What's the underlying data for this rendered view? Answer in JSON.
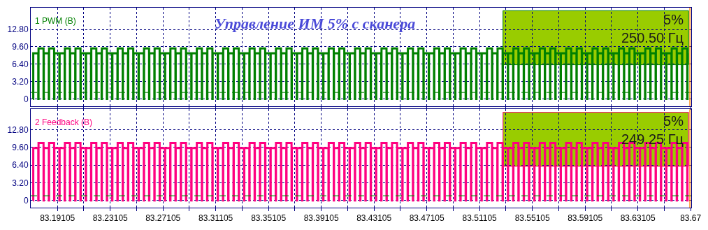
{
  "chart_data": [
    {
      "type": "step",
      "title": "Управление ИМ 5% с сканера",
      "x": [
        83.1725,
        83.1727,
        83.1765,
        83.1767,
        83.1805,
        83.1807,
        83.1845,
        83.1847,
        83.1885,
        83.1887,
        83.1925,
        83.1927,
        83.1965,
        83.1967,
        83.2005,
        83.2007,
        83.2045,
        83.2047,
        83.2085,
        83.2087,
        83.2125,
        83.2127,
        83.2165,
        83.2167,
        83.2205,
        83.2207,
        83.2245,
        83.2247,
        83.2285,
        83.2287,
        83.2325,
        83.2327,
        83.2365,
        83.2367,
        83.2405,
        83.2407,
        83.2445,
        83.2447,
        83.2485,
        83.2487,
        83.2525,
        83.2527,
        83.2565,
        83.2567,
        83.2605,
        83.2607,
        83.2645,
        83.2647,
        83.2685,
        83.2687,
        83.2725,
        83.2727,
        83.2765,
        83.2767,
        83.2805,
        83.2807,
        83.2845,
        83.2847,
        83.2885,
        83.2887,
        83.2925,
        83.2927,
        83.2965,
        83.2967,
        83.3005,
        83.3007,
        83.3045,
        83.3047,
        83.3085,
        83.3087,
        83.3125,
        83.3127,
        83.3165,
        83.3167,
        83.3205,
        83.3207,
        83.3245,
        83.3247,
        83.3285,
        83.3287,
        83.3325,
        83.3327,
        83.3365,
        83.3367,
        83.3405,
        83.3407,
        83.3445,
        83.3447,
        83.3485,
        83.3487,
        83.3525,
        83.3527,
        83.3565,
        83.3567,
        83.3605,
        83.3607,
        83.3645,
        83.3647,
        83.3685,
        83.3687,
        83.3725,
        83.3727,
        83.3765,
        83.3767,
        83.3805,
        83.3807,
        83.3845,
        83.3847,
        83.3885,
        83.3887,
        83.3925,
        83.3927,
        83.3965,
        83.3967,
        83.4005,
        83.4007,
        83.4045,
        83.4047,
        83.4085,
        83.4087,
        83.4125,
        83.4127,
        83.4165,
        83.4167,
        83.4205,
        83.4207,
        83.4245,
        83.4247,
        83.4285,
        83.4287,
        83.4325,
        83.4327,
        83.4365,
        83.4367,
        83.4405,
        83.4407,
        83.4445,
        83.4447,
        83.4485,
        83.4487,
        83.4525,
        83.4527,
        83.4565,
        83.4567,
        83.4605,
        83.4607,
        83.4645,
        83.4647,
        83.4685,
        83.4687,
        83.4725,
        83.4727,
        83.4765,
        83.4767,
        83.4805,
        83.4807,
        83.4845,
        83.4847,
        83.4885,
        83.4887,
        83.4925,
        83.4927,
        83.4965,
        83.4967,
        83.5005,
        83.5007,
        83.5045,
        83.5047,
        83.5085,
        83.5087,
        83.5125,
        83.5127,
        83.5165,
        83.5167,
        83.5205,
        83.5207,
        83.5245,
        83.5247,
        83.5285,
        83.5287,
        83.5325,
        83.5327,
        83.5365,
        83.5367,
        83.5405,
        83.5407,
        83.5445,
        83.5447,
        83.5485,
        83.5487,
        83.5525,
        83.5527,
        83.5565,
        83.5567,
        83.5605,
        83.5607,
        83.5645,
        83.5647,
        83.5685,
        83.5687,
        83.5725,
        83.5727,
        83.5765,
        83.5767,
        83.5805,
        83.5807,
        83.5845,
        83.5847,
        83.5885,
        83.5887,
        83.5925,
        83.5927,
        83.5965,
        83.5967,
        83.6005,
        83.6007,
        83.6045,
        83.6047,
        83.6085,
        83.6087,
        83.6125,
        83.6127,
        83.6165,
        83.6167,
        83.6205,
        83.6207,
        83.6245,
        83.6247,
        83.6285,
        83.6287,
        83.6325,
        83.6327,
        83.6365,
        83.6367,
        83.6405,
        83.6407,
        83.6445,
        83.6447,
        83.6485,
        83.6487,
        83.6525,
        83.6527,
        83.6565,
        83.6567,
        83.6605,
        83.6607,
        83.6645,
        83.6647,
        83.6685,
        83.6687
      ],
      "series": [
        {
          "name": "1 PWM (B)",
          "color": "#008000",
          "values": [
            0,
            8.4,
            0,
            9.3,
            0,
            8.4,
            0,
            9.3,
            0,
            8.4,
            0,
            8.4,
            0,
            9.3,
            0,
            8.4,
            0,
            9.3,
            0,
            8.4,
            0,
            8.4,
            0,
            9.3,
            0,
            8.4,
            0,
            9.3,
            0,
            8.4,
            0,
            8.4,
            0,
            9.3,
            0,
            8.4,
            0,
            9.3,
            0,
            8.4,
            0,
            8.4,
            0,
            9.3,
            0,
            8.4,
            0,
            9.3,
            0,
            8.4,
            0,
            8.4,
            0,
            9.3,
            0,
            8.4,
            0,
            9.3,
            0,
            8.4,
            0,
            8.4,
            0,
            9.3,
            0,
            8.4,
            0,
            9.3,
            0,
            8.4,
            0,
            8.4,
            0,
            9.3,
            0,
            8.4,
            0,
            9.3,
            0,
            8.4,
            0,
            8.4,
            0,
            9.3,
            0,
            8.4,
            0,
            9.3,
            0,
            8.4,
            0,
            8.4,
            0,
            9.3,
            0,
            8.4,
            0,
            9.3,
            0,
            8.4,
            0,
            8.4,
            0,
            9.3,
            0,
            8.4,
            0,
            9.3,
            0,
            8.4,
            0,
            8.4,
            0,
            9.3,
            0,
            8.4,
            0,
            9.3,
            0,
            8.4,
            0,
            8.4,
            0,
            9.3,
            0,
            8.4,
            0,
            9.3,
            0,
            8.4,
            0,
            8.4,
            0,
            9.3,
            0,
            8.4,
            0,
            9.3,
            0,
            8.4,
            0,
            8.4,
            0,
            9.3,
            0,
            8.4,
            0,
            9.3,
            0,
            8.4,
            0,
            8.4,
            0,
            9.3,
            0,
            8.4,
            0,
            9.3,
            0,
            8.4,
            0,
            8.4,
            0,
            9.3,
            0,
            8.4,
            0,
            9.3,
            0,
            8.4,
            0,
            8.4,
            0,
            9.3,
            0,
            8.4,
            0,
            9.3,
            0,
            8.4,
            0,
            8.4,
            0,
            9.3,
            0,
            8.4,
            0,
            9.3,
            0,
            8.4,
            0,
            8.4,
            0,
            9.3,
            0,
            8.4,
            0,
            9.3,
            0,
            8.4,
            0,
            8.4,
            0,
            9.3,
            0,
            8.4,
            0,
            9.3,
            0,
            8.4,
            0,
            8.4,
            0,
            9.3,
            0,
            8.4,
            0,
            9.3,
            0,
            8.4,
            0,
            8.4,
            0,
            9.3,
            0,
            8.4,
            0,
            9.3,
            0,
            8.4,
            0,
            8.4,
            0,
            9.3,
            0,
            8.4,
            0,
            9.3,
            0,
            8.4,
            0,
            8.4,
            0,
            9.3,
            0,
            8.4,
            0,
            9.3,
            0,
            8.4
          ]
        }
      ],
      "annotations": [
        "5%",
        "250.50 Гц"
      ],
      "xlim": [
        83.1708,
        83.6715
      ],
      "xticks": [
        {
          "value": 83.19105,
          "label": null
        },
        {
          "value": 83.21105,
          "label": null
        },
        {
          "value": 83.23105,
          "label": null
        },
        {
          "value": 83.25105,
          "label": null
        },
        {
          "value": 83.27105,
          "label": null
        },
        {
          "value": 83.29105,
          "label": null
        },
        {
          "value": 83.31105,
          "label": null
        },
        {
          "value": 83.33105,
          "label": null
        },
        {
          "value": 83.35105,
          "label": null
        },
        {
          "value": 83.37105,
          "label": null
        },
        {
          "value": 83.39105,
          "label": null
        },
        {
          "value": 83.41105,
          "label": null
        },
        {
          "value": 83.43105,
          "label": null
        },
        {
          "value": 83.45105,
          "label": null
        },
        {
          "value": 83.47105,
          "label": null
        },
        {
          "value": 83.49105,
          "label": null
        },
        {
          "value": 83.51105,
          "label": null
        },
        {
          "value": 83.53105,
          "label": null
        },
        {
          "value": 83.55105,
          "label": null
        },
        {
          "value": 83.57105,
          "label": null
        },
        {
          "value": 83.59105,
          "label": null
        },
        {
          "value": 83.61105,
          "label": null
        },
        {
          "value": 83.63105,
          "label": null
        },
        {
          "value": 83.65105,
          "label": null
        },
        {
          "value": 83.67105,
          "label": null
        }
      ],
      "ylim": [
        -1.3,
        16.8
      ],
      "yticks": [
        0,
        {
          "value": 3.2,
          "label": "3.20"
        },
        {
          "value": 6.4,
          "label": "6.40"
        },
        {
          "value": 9.6,
          "label": "9.60"
        },
        {
          "value": 12.8,
          "label": "12.80"
        }
      ],
      "ref_lines": [
        {
          "axis": "y",
          "value": 1.2,
          "color": "#008000",
          "line_style": "dashed"
        },
        {
          "axis": "x",
          "value": 83.6705,
          "color": "#ff8000",
          "line_style": "solid"
        }
      ],
      "grid": true,
      "tick_labels": "y"
    },
    {
      "type": "step",
      "x": [
        83.1725,
        83.1727,
        83.1765,
        83.1767,
        83.1805,
        83.1807,
        83.1845,
        83.1847,
        83.1885,
        83.1887,
        83.1925,
        83.1927,
        83.1965,
        83.1967,
        83.2005,
        83.2007,
        83.2045,
        83.2047,
        83.2085,
        83.2087,
        83.2125,
        83.2127,
        83.2165,
        83.2167,
        83.2205,
        83.2207,
        83.2245,
        83.2247,
        83.2285,
        83.2287,
        83.2325,
        83.2327,
        83.2365,
        83.2367,
        83.2405,
        83.2407,
        83.2445,
        83.2447,
        83.2485,
        83.2487,
        83.2525,
        83.2527,
        83.2565,
        83.2567,
        83.2605,
        83.2607,
        83.2645,
        83.2647,
        83.2685,
        83.2687,
        83.2725,
        83.2727,
        83.2765,
        83.2767,
        83.2805,
        83.2807,
        83.2845,
        83.2847,
        83.2885,
        83.2887,
        83.2925,
        83.2927,
        83.2965,
        83.2967,
        83.3005,
        83.3007,
        83.3045,
        83.3047,
        83.3085,
        83.3087,
        83.3125,
        83.3127,
        83.3165,
        83.3167,
        83.3205,
        83.3207,
        83.3245,
        83.3247,
        83.3285,
        83.3287,
        83.3325,
        83.3327,
        83.3365,
        83.3367,
        83.3405,
        83.3407,
        83.3445,
        83.3447,
        83.3485,
        83.3487,
        83.3525,
        83.3527,
        83.3565,
        83.3567,
        83.3605,
        83.3607,
        83.3645,
        83.3647,
        83.3685,
        83.3687,
        83.3725,
        83.3727,
        83.3765,
        83.3767,
        83.3805,
        83.3807,
        83.3845,
        83.3847,
        83.3885,
        83.3887,
        83.3925,
        83.3927,
        83.3965,
        83.3967,
        83.4005,
        83.4007,
        83.4045,
        83.4047,
        83.4085,
        83.4087,
        83.4125,
        83.4127,
        83.4165,
        83.4167,
        83.4205,
        83.4207,
        83.4245,
        83.4247,
        83.4285,
        83.4287,
        83.4325,
        83.4327,
        83.4365,
        83.4367,
        83.4405,
        83.4407,
        83.4445,
        83.4447,
        83.4485,
        83.4487,
        83.4525,
        83.4527,
        83.4565,
        83.4567,
        83.4605,
        83.4607,
        83.4645,
        83.4647,
        83.4685,
        83.4687,
        83.4725,
        83.4727,
        83.4765,
        83.4767,
        83.4805,
        83.4807,
        83.4845,
        83.4847,
        83.4885,
        83.4887,
        83.4925,
        83.4927,
        83.4965,
        83.4967,
        83.5005,
        83.5007,
        83.5045,
        83.5047,
        83.5085,
        83.5087,
        83.5125,
        83.5127,
        83.5165,
        83.5167,
        83.5205,
        83.5207,
        83.5245,
        83.5247,
        83.5285,
        83.5287,
        83.5325,
        83.5327,
        83.5365,
        83.5367,
        83.5405,
        83.5407,
        83.5445,
        83.5447,
        83.5485,
        83.5487,
        83.5525,
        83.5527,
        83.5565,
        83.5567,
        83.5605,
        83.5607,
        83.5645,
        83.5647,
        83.5685,
        83.5687,
        83.5725,
        83.5727,
        83.5765,
        83.5767,
        83.5805,
        83.5807,
        83.5845,
        83.5847,
        83.5885,
        83.5887,
        83.5925,
        83.5927,
        83.5965,
        83.5967,
        83.6005,
        83.6007,
        83.6045,
        83.6047,
        83.6085,
        83.6087,
        83.6125,
        83.6127,
        83.6165,
        83.6167,
        83.6205,
        83.6207,
        83.6245,
        83.6247,
        83.6285,
        83.6287,
        83.6325,
        83.6327,
        83.6365,
        83.6367,
        83.6405,
        83.6407,
        83.6445,
        83.6447,
        83.6485,
        83.6487,
        83.6525,
        83.6527,
        83.6565,
        83.6567,
        83.6605,
        83.6607,
        83.6645,
        83.6647,
        83.6685,
        83.6687
      ],
      "series": [
        {
          "name": "2 Feedback (B)",
          "color": "#ff0080",
          "values": [
            0,
            9.5,
            0,
            10.4,
            0,
            9.5,
            0,
            10.4,
            0,
            9.5,
            0,
            9.5,
            0,
            10.4,
            0,
            9.5,
            0,
            10.4,
            0,
            9.5,
            0,
            9.5,
            0,
            10.4,
            0,
            9.5,
            0,
            10.4,
            0,
            9.5,
            0,
            9.5,
            0,
            10.4,
            0,
            9.5,
            0,
            10.4,
            0,
            9.5,
            0,
            9.5,
            0,
            10.4,
            0,
            9.5,
            0,
            10.4,
            0,
            9.5,
            0,
            9.5,
            0,
            10.4,
            0,
            9.5,
            0,
            10.4,
            0,
            9.5,
            0,
            9.5,
            0,
            10.4,
            0,
            9.5,
            0,
            10.4,
            0,
            9.5,
            0,
            9.5,
            0,
            10.4,
            0,
            9.5,
            0,
            10.4,
            0,
            9.5,
            0,
            9.5,
            0,
            10.4,
            0,
            9.5,
            0,
            10.4,
            0,
            9.5,
            0,
            9.5,
            0,
            10.4,
            0,
            9.5,
            0,
            10.4,
            0,
            9.5,
            0,
            9.5,
            0,
            10.4,
            0,
            9.5,
            0,
            10.4,
            0,
            9.5,
            0,
            9.5,
            0,
            10.4,
            0,
            9.5,
            0,
            10.4,
            0,
            9.5,
            0,
            9.5,
            0,
            10.4,
            0,
            9.5,
            0,
            10.4,
            0,
            9.5,
            0,
            9.5,
            0,
            10.4,
            0,
            9.5,
            0,
            10.4,
            0,
            9.5,
            0,
            9.5,
            0,
            10.4,
            0,
            9.5,
            0,
            10.4,
            0,
            9.5,
            0,
            9.5,
            0,
            10.4,
            0,
            9.5,
            0,
            10.4,
            0,
            9.5,
            0,
            9.5,
            0,
            10.4,
            0,
            9.5,
            0,
            10.4,
            0,
            9.5,
            0,
            9.5,
            0,
            10.4,
            0,
            9.5,
            0,
            10.4,
            0,
            9.5,
            0,
            9.5,
            0,
            10.4,
            0,
            9.5,
            0,
            10.4,
            0,
            9.5,
            0,
            9.5,
            0,
            10.4,
            0,
            9.5,
            0,
            10.4,
            0,
            9.5,
            0,
            9.5,
            0,
            10.4,
            0,
            9.5,
            0,
            10.4,
            0,
            9.5,
            0,
            9.5,
            0,
            10.4,
            0,
            9.5,
            0,
            10.4,
            0,
            9.5,
            0,
            9.5,
            0,
            10.4,
            0,
            9.5,
            0,
            10.4,
            0,
            9.5,
            0,
            9.5,
            0,
            10.4,
            0,
            9.5,
            0,
            10.4,
            0,
            9.5,
            0,
            9.5,
            0,
            10.4,
            0,
            9.5,
            0,
            10.4,
            0,
            9.5
          ]
        }
      ],
      "annotations": [
        "5%",
        "249.25 Гц"
      ],
      "xlim": [
        83.1708,
        83.6715
      ],
      "xticks": [
        83.19105,
        {
          "value": 83.21105,
          "label": null
        },
        83.23105,
        {
          "value": 83.25105,
          "label": null
        },
        83.27105,
        {
          "value": 83.29105,
          "label": null
        },
        83.31105,
        {
          "value": 83.33105,
          "label": null
        },
        83.35105,
        {
          "value": 83.37105,
          "label": null
        },
        83.39105,
        {
          "value": 83.41105,
          "label": null
        },
        83.43105,
        {
          "value": 83.45105,
          "label": null
        },
        83.47105,
        {
          "value": 83.49105,
          "label": null
        },
        83.51105,
        {
          "value": 83.53105,
          "label": null
        },
        83.55105,
        {
          "value": 83.57105,
          "label": null
        },
        83.59105,
        {
          "value": 83.61105,
          "label": null
        },
        83.63105,
        {
          "value": 83.65105,
          "label": null
        },
        {
          "value": 83.67105,
          "label": "83.67"
        }
      ],
      "ylim": [
        -1.3,
        16.5
      ],
      "yticks": [
        0,
        {
          "value": 3.2,
          "label": "3.20"
        },
        {
          "value": 6.4,
          "label": "6.40"
        },
        {
          "value": 9.6,
          "label": "9.60"
        },
        {
          "value": 12.8,
          "label": "12.80"
        }
      ],
      "ref_lines": [
        {
          "axis": "y",
          "value": 0.85,
          "color": "#008000",
          "line_style": "dashed"
        },
        {
          "axis": "x",
          "value": 83.6705,
          "color": "#ff8000",
          "line_style": "solid"
        }
      ],
      "grid": true
    }
  ]
}
